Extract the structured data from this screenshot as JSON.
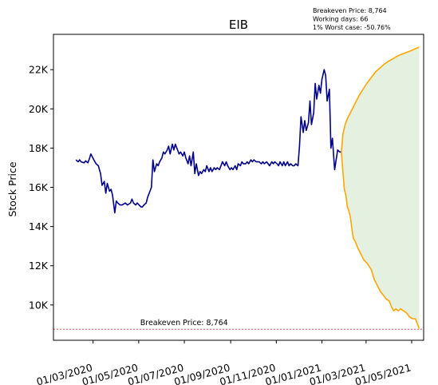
{
  "chart_data": {
    "type": "line",
    "title": "EIB",
    "ylabel": "Stock Price",
    "xlabel": "",
    "ylim": [
      8200,
      23800
    ],
    "xlim": [
      "2020-01-08",
      "2021-05-17"
    ],
    "yticks": [
      10000,
      12000,
      14000,
      16000,
      18000,
      20000,
      22000
    ],
    "ytick_labels": [
      "10K",
      "12K",
      "14K",
      "16K",
      "18K",
      "20K",
      "22K"
    ],
    "xticks": [
      "2020-03-01",
      "2020-05-01",
      "2020-07-01",
      "2020-09-01",
      "2020-11-01",
      "2021-01-01",
      "2021-03-01",
      "2021-05-01"
    ],
    "xtick_labels": [
      "01/03/2020",
      "01/05/2020",
      "01/07/2020",
      "01/09/2020",
      "01/11/2020",
      "01/01/2021",
      "01/03/2021",
      "01/05/2021"
    ],
    "grid": false,
    "info_lines": [
      "Breakeven Price: 8,764",
      "Working days: 66",
      "1% Worst case: -50.76%"
    ],
    "breakeven": {
      "value": 8764,
      "label": "Breakeven Price: 8,764",
      "color": "#ff0000"
    },
    "series": [
      {
        "role": "history",
        "color": "#00008b",
        "points": [
          [
            "2020-02-07",
            17400
          ],
          [
            "2020-02-10",
            17300
          ],
          [
            "2020-02-12",
            17400
          ],
          [
            "2020-02-14",
            17300
          ],
          [
            "2020-02-18",
            17250
          ],
          [
            "2020-02-20",
            17350
          ],
          [
            "2020-02-23",
            17250
          ],
          [
            "2020-02-25",
            17450
          ],
          [
            "2020-02-27",
            17700
          ],
          [
            "2020-03-02",
            17400
          ],
          [
            "2020-03-05",
            17200
          ],
          [
            "2020-03-08",
            17100
          ],
          [
            "2020-03-11",
            16700
          ],
          [
            "2020-03-13",
            16100
          ],
          [
            "2020-03-16",
            16300
          ],
          [
            "2020-03-18",
            15700
          ],
          [
            "2020-03-20",
            16200
          ],
          [
            "2020-03-23",
            15800
          ],
          [
            "2020-03-25",
            15900
          ],
          [
            "2020-03-27",
            15600
          ],
          [
            "2020-03-30",
            14700
          ],
          [
            "2020-04-01",
            15300
          ],
          [
            "2020-04-03",
            15200
          ],
          [
            "2020-04-06",
            15100
          ],
          [
            "2020-04-09",
            15100
          ],
          [
            "2020-04-13",
            15200
          ],
          [
            "2020-04-16",
            15100
          ],
          [
            "2020-04-20",
            15200
          ],
          [
            "2020-04-22",
            15400
          ],
          [
            "2020-04-24",
            15200
          ],
          [
            "2020-04-27",
            15100
          ],
          [
            "2020-04-29",
            15200
          ],
          [
            "2020-05-04",
            15000
          ],
          [
            "2020-05-06",
            15000
          ],
          [
            "2020-05-08",
            15100
          ],
          [
            "2020-05-11",
            15200
          ],
          [
            "2020-05-13",
            15500
          ],
          [
            "2020-05-15",
            15700
          ],
          [
            "2020-05-18",
            16000
          ],
          [
            "2020-05-20",
            17400
          ],
          [
            "2020-05-22",
            16800
          ],
          [
            "2020-05-25",
            17200
          ],
          [
            "2020-05-27",
            17100
          ],
          [
            "2020-05-29",
            17300
          ],
          [
            "2020-06-01",
            17500
          ],
          [
            "2020-06-03",
            17800
          ],
          [
            "2020-06-05",
            17700
          ],
          [
            "2020-06-08",
            17900
          ],
          [
            "2020-06-10",
            18100
          ],
          [
            "2020-06-12",
            17700
          ],
          [
            "2020-06-15",
            18200
          ],
          [
            "2020-06-17",
            17900
          ],
          [
            "2020-06-19",
            18200
          ],
          [
            "2020-06-22",
            17900
          ],
          [
            "2020-06-24",
            17700
          ],
          [
            "2020-06-26",
            17800
          ],
          [
            "2020-06-29",
            17600
          ],
          [
            "2020-07-01",
            17800
          ],
          [
            "2020-07-03",
            17500
          ],
          [
            "2020-07-06",
            17200
          ],
          [
            "2020-07-08",
            17600
          ],
          [
            "2020-07-10",
            17100
          ],
          [
            "2020-07-13",
            17800
          ],
          [
            "2020-07-15",
            16700
          ],
          [
            "2020-07-17",
            17200
          ],
          [
            "2020-07-20",
            16600
          ],
          [
            "2020-07-22",
            16800
          ],
          [
            "2020-07-24",
            16700
          ],
          [
            "2020-07-27",
            16900
          ],
          [
            "2020-07-29",
            16800
          ],
          [
            "2020-07-31",
            17100
          ],
          [
            "2020-08-03",
            16800
          ],
          [
            "2020-08-05",
            17000
          ],
          [
            "2020-08-07",
            16800
          ],
          [
            "2020-08-10",
            17000
          ],
          [
            "2020-08-12",
            16900
          ],
          [
            "2020-08-14",
            17000
          ],
          [
            "2020-08-17",
            16900
          ],
          [
            "2020-08-19",
            17100
          ],
          [
            "2020-08-21",
            17300
          ],
          [
            "2020-08-24",
            17100
          ],
          [
            "2020-08-26",
            17300
          ],
          [
            "2020-08-28",
            17100
          ],
          [
            "2020-08-31",
            16900
          ],
          [
            "2020-09-02",
            17000
          ],
          [
            "2020-09-04",
            16900
          ],
          [
            "2020-09-07",
            17100
          ],
          [
            "2020-09-09",
            16900
          ],
          [
            "2020-09-11",
            17200
          ],
          [
            "2020-09-14",
            17100
          ],
          [
            "2020-09-16",
            17300
          ],
          [
            "2020-09-18",
            17200
          ],
          [
            "2020-09-21",
            17200
          ],
          [
            "2020-09-23",
            17300
          ],
          [
            "2020-09-25",
            17200
          ],
          [
            "2020-09-28",
            17400
          ],
          [
            "2020-09-30",
            17300
          ],
          [
            "2020-10-02",
            17400
          ],
          [
            "2020-10-05",
            17300
          ],
          [
            "2020-10-07",
            17300
          ],
          [
            "2020-10-09",
            17300
          ],
          [
            "2020-10-12",
            17200
          ],
          [
            "2020-10-14",
            17300
          ],
          [
            "2020-10-16",
            17200
          ],
          [
            "2020-10-19",
            17300
          ],
          [
            "2020-10-21",
            17200
          ],
          [
            "2020-10-23",
            17100
          ],
          [
            "2020-10-26",
            17300
          ],
          [
            "2020-10-28",
            17200
          ],
          [
            "2020-10-30",
            17300
          ],
          [
            "2020-11-02",
            17200
          ],
          [
            "2020-11-04",
            17100
          ],
          [
            "2020-11-06",
            17300
          ],
          [
            "2020-11-09",
            17100
          ],
          [
            "2020-11-11",
            17300
          ],
          [
            "2020-11-13",
            17100
          ],
          [
            "2020-11-16",
            17300
          ],
          [
            "2020-11-18",
            17100
          ],
          [
            "2020-11-20",
            17200
          ],
          [
            "2020-11-23",
            17100
          ],
          [
            "2020-11-25",
            17100
          ],
          [
            "2020-11-27",
            17200
          ],
          [
            "2020-11-30",
            17100
          ],
          [
            "2020-12-02",
            18100
          ],
          [
            "2020-12-04",
            19600
          ],
          [
            "2020-12-07",
            18800
          ],
          [
            "2020-12-09",
            19400
          ],
          [
            "2020-12-11",
            18900
          ],
          [
            "2020-12-14",
            19300
          ],
          [
            "2020-12-16",
            20400
          ],
          [
            "2020-12-18",
            19200
          ],
          [
            "2020-12-21",
            19800
          ],
          [
            "2020-12-23",
            21300
          ],
          [
            "2020-12-25",
            20500
          ],
          [
            "2020-12-28",
            21200
          ],
          [
            "2020-12-30",
            20800
          ],
          [
            "2021-01-01",
            21500
          ],
          [
            "2021-01-04",
            22000
          ],
          [
            "2021-01-06",
            21700
          ],
          [
            "2021-01-08",
            20400
          ],
          [
            "2021-01-11",
            21000
          ],
          [
            "2021-01-13",
            18000
          ],
          [
            "2021-01-15",
            18500
          ],
          [
            "2021-01-18",
            16900
          ],
          [
            "2021-01-20",
            17400
          ],
          [
            "2021-01-22",
            17900
          ],
          [
            "2021-01-25",
            17800
          ],
          [
            "2021-01-27",
            17800
          ]
        ]
      },
      {
        "role": "upper-bound",
        "color": "#ffa500",
        "points": [
          [
            "2021-01-27",
            17800
          ],
          [
            "2021-01-29",
            18700
          ],
          [
            "2021-02-01",
            19200
          ],
          [
            "2021-02-04",
            19500
          ],
          [
            "2021-02-08",
            19800
          ],
          [
            "2021-02-12",
            20100
          ],
          [
            "2021-02-16",
            20400
          ],
          [
            "2021-02-20",
            20700
          ],
          [
            "2021-02-25",
            21000
          ],
          [
            "2021-03-02",
            21300
          ],
          [
            "2021-03-08",
            21600
          ],
          [
            "2021-03-14",
            21900
          ],
          [
            "2021-03-20",
            22100
          ],
          [
            "2021-03-26",
            22300
          ],
          [
            "2021-04-01",
            22450
          ],
          [
            "2021-04-08",
            22600
          ],
          [
            "2021-04-15",
            22750
          ],
          [
            "2021-04-22",
            22850
          ],
          [
            "2021-04-29",
            22950
          ],
          [
            "2021-05-05",
            23050
          ],
          [
            "2021-05-11",
            23150
          ]
        ]
      },
      {
        "role": "lower-bound",
        "color": "#ffa500",
        "points": [
          [
            "2021-01-27",
            17800
          ],
          [
            "2021-01-29",
            16800
          ],
          [
            "2021-01-31",
            15900
          ],
          [
            "2021-02-02",
            15600
          ],
          [
            "2021-02-04",
            15000
          ],
          [
            "2021-02-06",
            14800
          ],
          [
            "2021-02-08",
            14500
          ],
          [
            "2021-02-10",
            13900
          ],
          [
            "2021-02-12",
            13400
          ],
          [
            "2021-02-15",
            13200
          ],
          [
            "2021-02-18",
            12900
          ],
          [
            "2021-02-22",
            12600
          ],
          [
            "2021-02-26",
            12300
          ],
          [
            "2021-03-03",
            12100
          ],
          [
            "2021-03-08",
            11800
          ],
          [
            "2021-03-12",
            11300
          ],
          [
            "2021-03-16",
            11000
          ],
          [
            "2021-03-20",
            10700
          ],
          [
            "2021-03-24",
            10500
          ],
          [
            "2021-03-28",
            10300
          ],
          [
            "2021-04-01",
            10200
          ],
          [
            "2021-04-04",
            9900
          ],
          [
            "2021-04-07",
            9700
          ],
          [
            "2021-04-10",
            9800
          ],
          [
            "2021-04-13",
            9700
          ],
          [
            "2021-04-16",
            9800
          ],
          [
            "2021-04-20",
            9700
          ],
          [
            "2021-04-24",
            9600
          ],
          [
            "2021-04-28",
            9400
          ],
          [
            "2021-05-02",
            9300
          ],
          [
            "2021-05-06",
            9300
          ],
          [
            "2021-05-09",
            9000
          ],
          [
            "2021-05-11",
            8800
          ]
        ]
      }
    ],
    "band_fill_color": "#e4f0e0"
  }
}
